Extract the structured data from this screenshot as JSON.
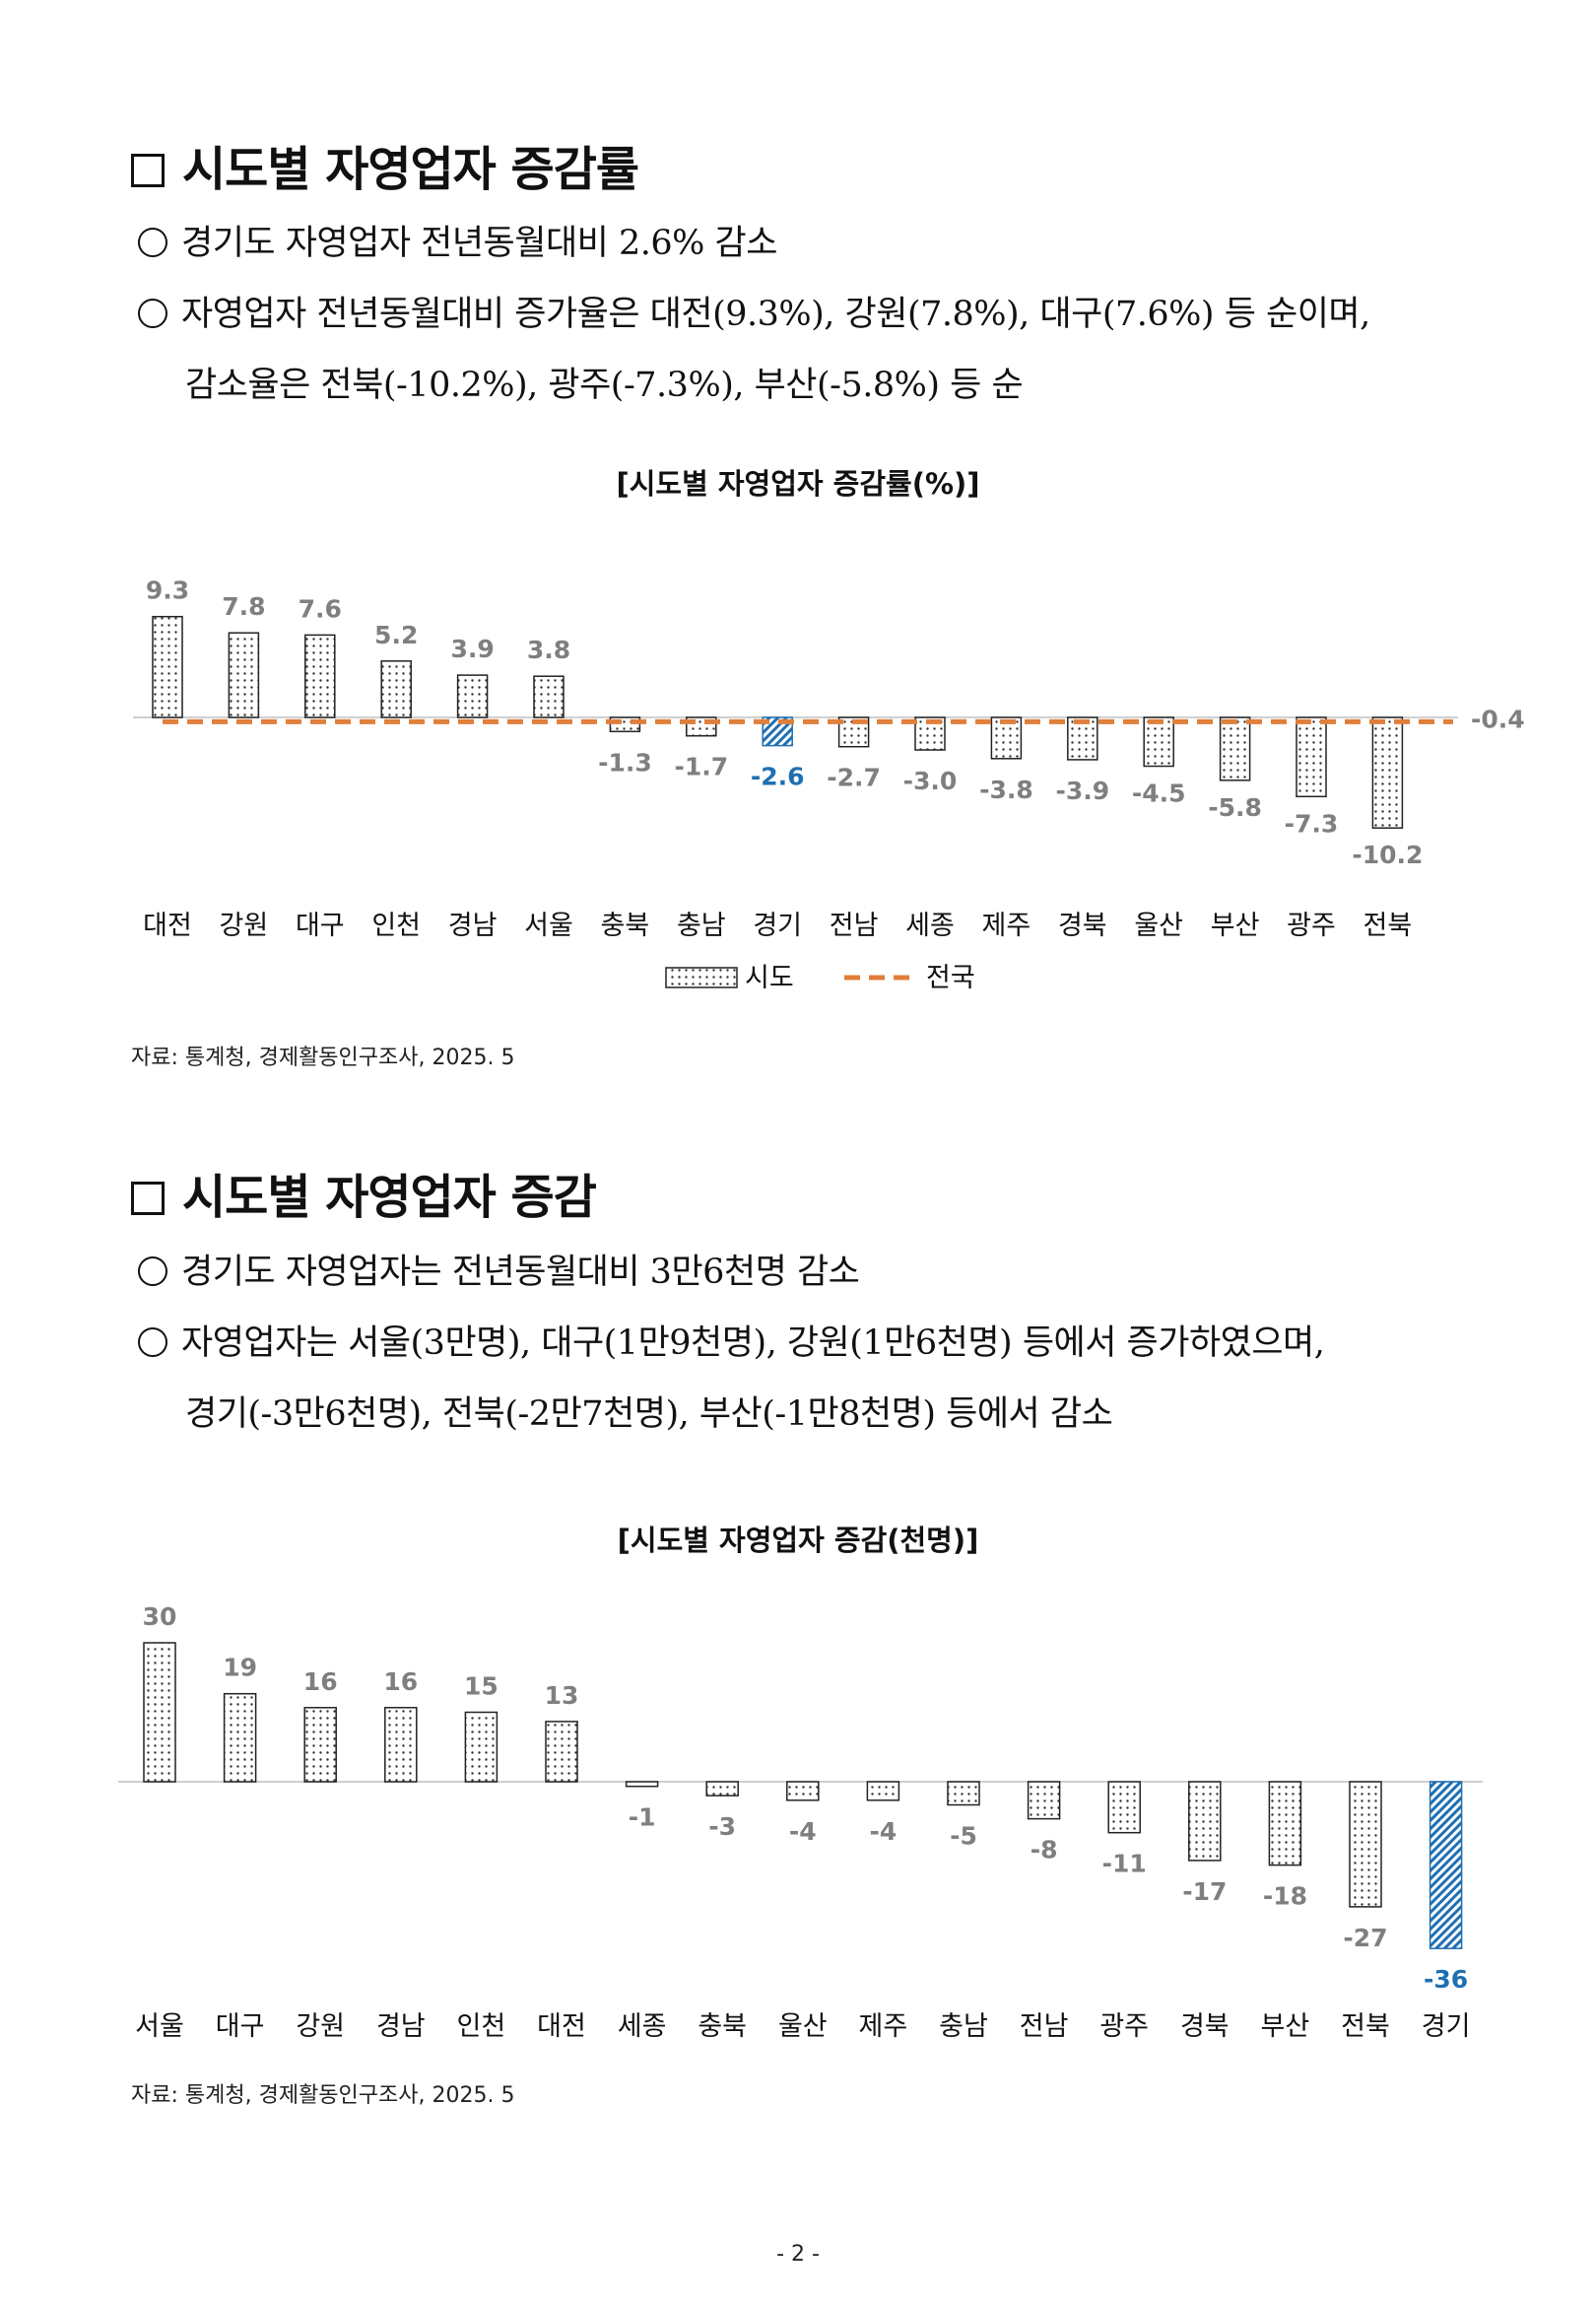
{
  "section1": {
    "title": "시도별 자영업자 증감률",
    "bullets": [
      "경기도 자영업자 전년동월대비 2.6% 감소",
      "자영업자 전년동월대비 증가율은 대전(9.3%), 강원(7.8%), 대구(7.6%) 등 순이며,"
    ],
    "continuation": "감소율은 전북(-10.2%), 광주(-7.3%), 부산(-5.8%) 등 순",
    "source": "자료: 통계청, 경제활동인구조사, 2025. 5"
  },
  "section2": {
    "title": "시도별 자영업자 증감",
    "bullets": [
      "경기도 자영업자는 전년동월대비 3만6천명 감소",
      "자영업자는 서울(3만명), 대구(1만9천명), 강원(1만6천명) 등에서 증가하였으며,"
    ],
    "continuation": "경기(-3만6천명), 전북(-2만7천명), 부산(-1만8천명) 등에서 감소",
    "source": "자료: 통계청, 경제활동인구조사, 2025. 5"
  },
  "page_number": "- 2 -",
  "colors": {
    "highlight": "#1f6fb2",
    "national": "#e07f3c",
    "label": "#7f7f7f",
    "axis": "#d0d0d0"
  },
  "chart_data": [
    {
      "type": "bar",
      "title": "[시도별 자영업자 증감률(%)]",
      "categories": [
        "대전",
        "강원",
        "대구",
        "인천",
        "경남",
        "서울",
        "충북",
        "충남",
        "경기",
        "전남",
        "세종",
        "제주",
        "경북",
        "울산",
        "부산",
        "광주",
        "전북"
      ],
      "series": [
        {
          "name": "시도",
          "values": [
            9.3,
            7.8,
            7.6,
            5.2,
            3.9,
            3.8,
            -1.3,
            -1.7,
            -2.6,
            -2.7,
            -3.0,
            -3.8,
            -3.9,
            -4.5,
            -5.8,
            -7.3,
            -10.2
          ]
        },
        {
          "name": "전국",
          "type": "line",
          "value": -0.4,
          "label": "-0.4"
        }
      ],
      "labels": [
        "9.3",
        "7.8",
        "7.6",
        "5.2",
        "3.9",
        "3.8",
        "-1.3",
        "-1.7",
        "-2.6",
        "-2.7",
        "-3.0",
        "-3.8",
        "-3.9",
        "-4.5",
        "-5.8",
        "-7.3",
        "-10.2"
      ],
      "highlight": "경기",
      "ylim": [
        -12,
        11
      ],
      "legend": "bottom"
    },
    {
      "type": "bar",
      "title": "[시도별 자영업자 증감(천명)]",
      "categories": [
        "서울",
        "대구",
        "강원",
        "경남",
        "인천",
        "대전",
        "세종",
        "충북",
        "울산",
        "제주",
        "충남",
        "전남",
        "광주",
        "경북",
        "부산",
        "전북",
        "경기"
      ],
      "series": [
        {
          "name": "시도",
          "values": [
            30,
            19,
            16,
            16,
            15,
            13,
            -1,
            -3,
            -4,
            -4,
            -5,
            -8,
            -11,
            -17,
            -18,
            -27,
            -36
          ]
        }
      ],
      "labels": [
        "30",
        "19",
        "16",
        "16",
        "15",
        "13",
        "-1",
        "-3",
        "-4",
        "-4",
        "-5",
        "-8",
        "-11",
        "-17",
        "-18",
        "-27",
        "-36"
      ],
      "highlight": "경기",
      "ylim": [
        -40,
        33
      ]
    }
  ]
}
